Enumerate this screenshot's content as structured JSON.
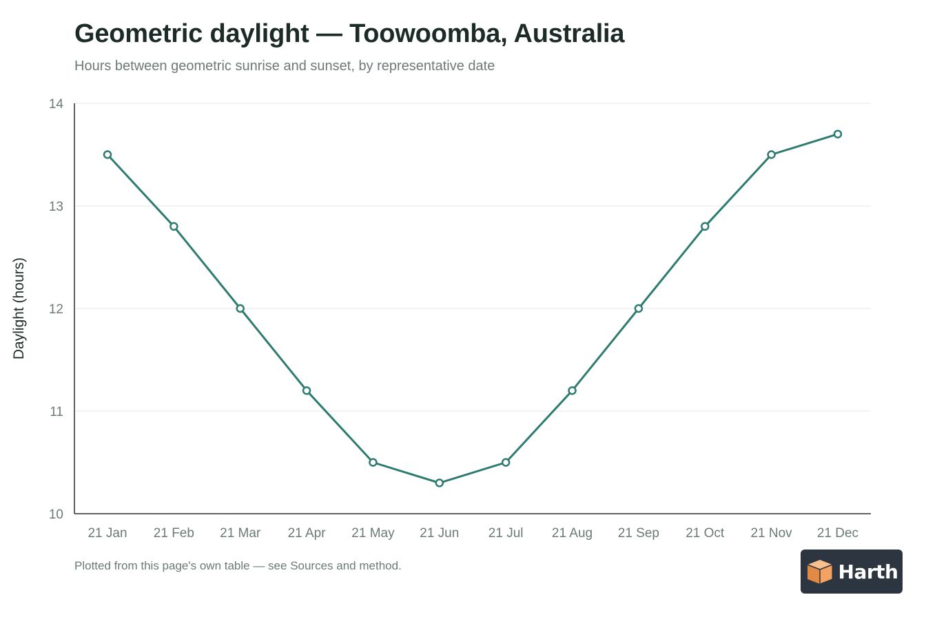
{
  "brand": {
    "name": "Harth",
    "accent": "#f4a261"
  },
  "footnote": "Plotted from this page's own table — see Sources and method.",
  "chart_data": {
    "type": "line",
    "title": "Geometric daylight — Toowoomba, Australia",
    "subtitle": "Hours between geometric sunrise and sunset, by representative date",
    "xlabel": "",
    "ylabel": "Daylight (hours)",
    "categories": [
      "21 Jan",
      "21 Feb",
      "21 Mar",
      "21 Apr",
      "21 May",
      "21 Jun",
      "21 Jul",
      "21 Aug",
      "21 Sep",
      "21 Oct",
      "21 Nov",
      "21 Dec"
    ],
    "series": [
      {
        "values": [
          13.5,
          12.8,
          12.0,
          11.2,
          10.5,
          10.3,
          10.5,
          11.2,
          12.0,
          12.8,
          13.5,
          13.7
        ],
        "color": "#2e7b6f"
      }
    ],
    "ylim": [
      10,
      14
    ],
    "yticks": [
      10,
      11,
      12,
      13,
      14
    ],
    "grid": true,
    "legend": "none"
  }
}
